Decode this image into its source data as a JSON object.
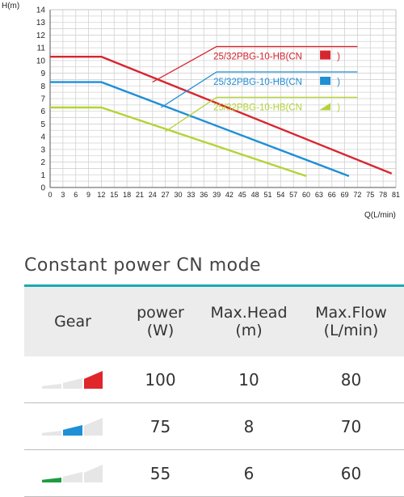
{
  "chart_data": {
    "type": "line",
    "xlabel": "Q(L/min)",
    "ylabel": "H(m)",
    "xlim": [
      0,
      81
    ],
    "ylim": [
      0,
      14
    ],
    "x_ticks": [
      "0",
      "3",
      "6",
      "9",
      "12",
      "15",
      "18",
      "21",
      "24",
      "27",
      "30",
      "33",
      "36",
      "39",
      "42",
      "45",
      "48",
      "51",
      "54",
      "57",
      "60",
      "63",
      "66",
      "69",
      "72",
      "75",
      "78",
      "81"
    ],
    "y_ticks": [
      "0",
      "1",
      "2",
      "3",
      "4",
      "5",
      "6",
      "7",
      "8",
      "9",
      "10",
      "11",
      "12",
      "13",
      "14"
    ],
    "grid": true,
    "series": [
      {
        "name": "25/32PBG-10-HB(CN",
        "suffix": ")",
        "color": "#d7262f",
        "points": [
          [
            0,
            10.3
          ],
          [
            10,
            10.3
          ],
          [
            12,
            10.3
          ],
          [
            80,
            1.1
          ]
        ],
        "label_anchor": [
          24,
          8.3
        ],
        "label_corner": [
          39,
          11.1
        ],
        "label_end": [
          72,
          11.1
        ]
      },
      {
        "name": "25/32PBG-10-HB(CN",
        "suffix": ")",
        "color": "#1f8fd6",
        "points": [
          [
            0,
            8.3
          ],
          [
            10,
            8.3
          ],
          [
            12,
            8.3
          ],
          [
            70,
            0.9
          ]
        ],
        "label_anchor": [
          26,
          6.3
        ],
        "label_corner": [
          39,
          9.1
        ],
        "label_end": [
          72,
          9.1
        ]
      },
      {
        "name": "25/32PBG-10-HB(CN",
        "suffix": ")",
        "color": "#b4d335",
        "points": [
          [
            0,
            6.3
          ],
          [
            10,
            6.3
          ],
          [
            12,
            6.3
          ],
          [
            60,
            0.9
          ]
        ],
        "label_anchor": [
          27,
          4.4
        ],
        "label_corner": [
          39,
          7.1
        ],
        "label_end": [
          72,
          7.1
        ]
      }
    ]
  },
  "table": {
    "title": "Constant power CN mode",
    "accent_color": "#1aa9b3",
    "headers": {
      "gear": "Gear",
      "power_l1": "power",
      "power_l2": "(W)",
      "head_l1": "Max.Head",
      "head_l2": "(m)",
      "flow_l1": "Max.Flow",
      "flow_l2": "(L/min)"
    },
    "rows": [
      {
        "gear_level": 3,
        "gear_color": "#e0262b",
        "power": "100",
        "head": "10",
        "flow": "80"
      },
      {
        "gear_level": 2,
        "gear_color": "#1f8fd6",
        "power": "75",
        "head": "8",
        "flow": "70"
      },
      {
        "gear_level": 1,
        "gear_color": "#1e9c3e",
        "power": "55",
        "head": "6",
        "flow": "60"
      }
    ]
  }
}
